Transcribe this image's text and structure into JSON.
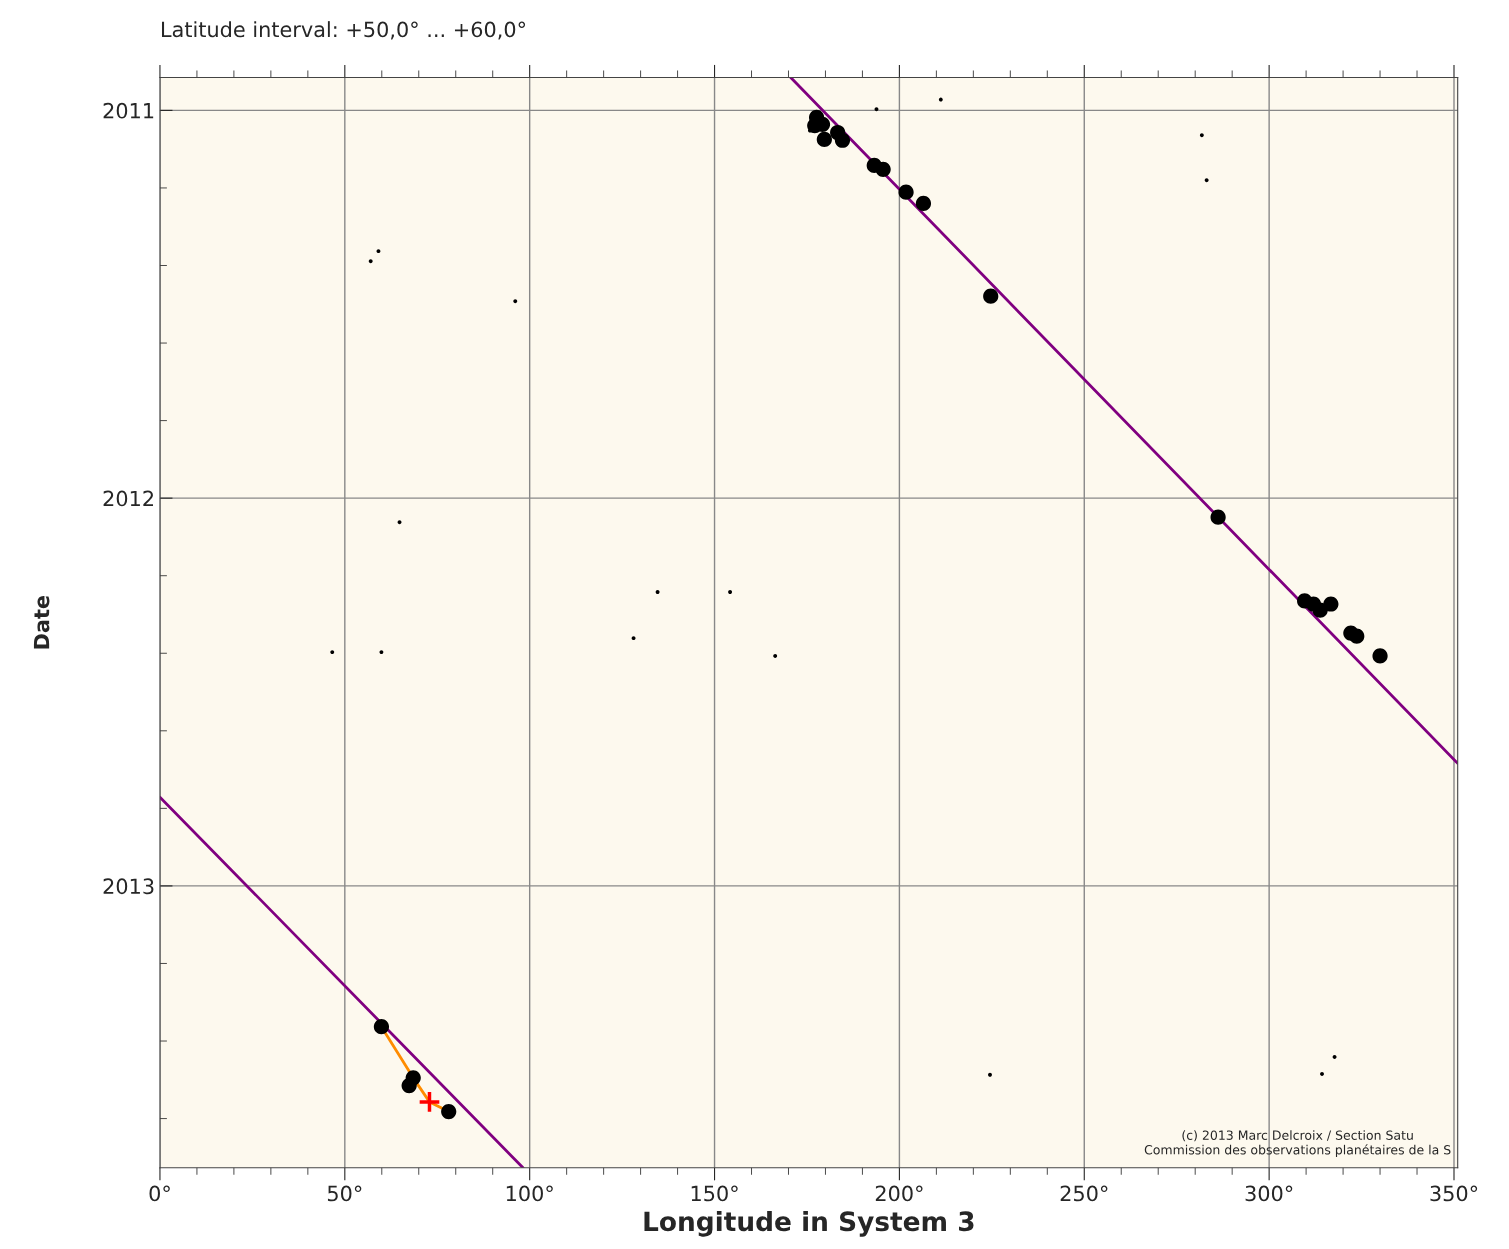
{
  "chart_data": {
    "type": "scatter",
    "title": "Latitude interval: +50,0° ... +60,0°",
    "xlabel": "Longitude in System 3",
    "ylabel": "Date",
    "xlim": [
      0,
      351
    ],
    "xticks": [
      {
        "value": 0,
        "label": "0°"
      },
      {
        "value": 50,
        "label": "50°"
      },
      {
        "value": 100,
        "label": "100°"
      },
      {
        "value": 150,
        "label": "150°"
      },
      {
        "value": 200,
        "label": "200°"
      },
      {
        "value": 250,
        "label": "250°"
      },
      {
        "value": 300,
        "label": "300°"
      },
      {
        "value": 350,
        "label": "350°"
      }
    ],
    "ylim": [
      2013.727,
      2010.915
    ],
    "yticks": [
      2011,
      2012,
      2013
    ],
    "grid": true,
    "marker": "circle",
    "series": [
      {
        "type": "line",
        "marker": "none",
        "color": "#800080",
        "x": [
          170.6,
          351.0
        ],
        "values": [
          2010.915,
          2012.684
        ]
      },
      {
        "type": "line",
        "marker": "none",
        "color": "#800080",
        "x": [
          0,
          98.2
        ],
        "values": [
          2012.771,
          2013.727
        ]
      },
      {
        "type": "line",
        "marker": "none",
        "color": "#ff8c00",
        "x": [
          59.9,
          68.5,
          72.9,
          78.1
        ],
        "values": [
          2013.363,
          2013.495,
          2013.557,
          2013.582
        ]
      },
      {
        "color": "#000000",
        "x": [
          177.6,
          177.1,
          179.2,
          179.7,
          183.3,
          184.6,
          193.2,
          195.6,
          201.8,
          206.5,
          224.7,
          286.2,
          309.6,
          312.0,
          313.8,
          316.7,
          322.1,
          323.7,
          330.0,
          59.9,
          68.5,
          67.4,
          78.1
        ],
        "values": [
          2011.018,
          2011.039,
          2011.036,
          2011.075,
          2011.057,
          2011.077,
          2011.142,
          2011.152,
          2011.211,
          2011.24,
          2011.479,
          2012.049,
          2012.265,
          2012.273,
          2012.289,
          2012.273,
          2012.348,
          2012.356,
          2012.407,
          2013.363,
          2013.495,
          2013.515,
          2013.582
        ]
      },
      {
        "color": "#000000",
        "x": [
          193.8,
          211.2,
          281.8,
          283.1,
          57.0,
          59.1,
          96.1,
          64.8,
          134.6,
          154.2,
          128.1,
          46.6,
          59.9,
          166.4,
          224.5,
          314.3,
          317.7,
          175.8
        ],
        "values": [
          2010.997,
          2010.972,
          2011.064,
          2011.18,
          2011.389,
          2011.363,
          2011.492,
          2012.062,
          2012.242,
          2012.242,
          2012.361,
          2012.397,
          2012.397,
          2012.407,
          2013.487,
          2013.485,
          2013.441,
          2011.052
        ]
      },
      {
        "color": "#ff0000",
        "marker": "cross",
        "x": [
          72.9
        ],
        "values": [
          2013.557
        ]
      }
    ],
    "annotations": [
      "(c) 2013 Marc Delcroix / Section Satu\nCommission des observations planétaires de la S"
    ]
  }
}
